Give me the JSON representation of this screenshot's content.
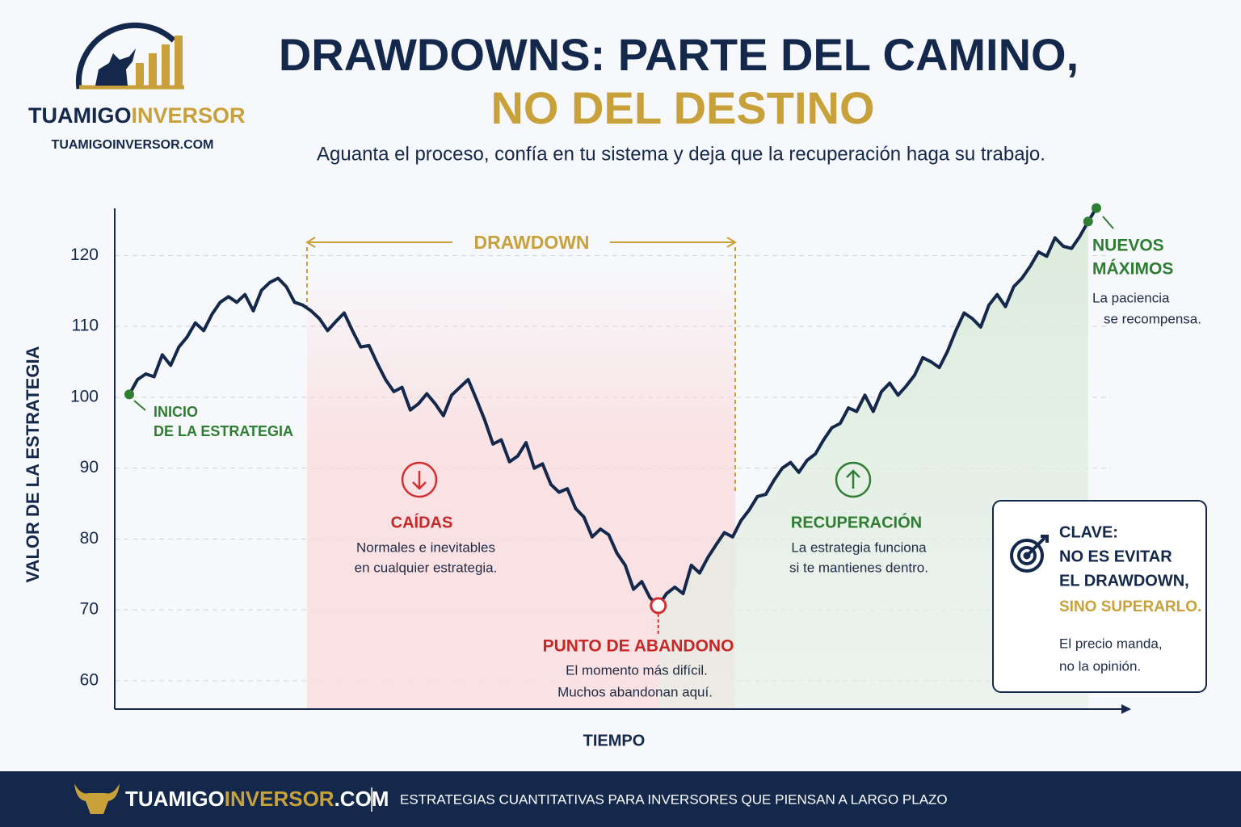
{
  "brand": {
    "name_a": "TUAMIGO",
    "name_b": "INVERSOR",
    "site": "TUAMIGOINVERSOR.COM"
  },
  "header": {
    "title_1": "DRAWDOWNS: PARTE DEL CAMINO,",
    "title_2": "NO DEL DESTINO",
    "subtitle": "Aguanta el proceso, confía en tu sistema y deja que la recuperación haga su trabajo."
  },
  "chart_data": {
    "type": "line",
    "ylabel": "VALOR DE LA ESTRATEGIA",
    "xlabel": "TIEMPO",
    "color": "#14284b",
    "values": [
      100.4,
      102.5,
      103.3,
      102.9,
      106,
      104.5,
      107.1,
      108.5,
      110.5,
      109.4,
      111.7,
      113.4,
      114.2,
      113.4,
      114.5,
      112.2,
      115.1,
      116.2,
      116.8,
      115.6,
      113.4,
      113,
      112.2,
      111.1,
      109.4,
      110.7,
      111.9,
      109.4,
      107.1,
      107.3,
      104.8,
      102.5,
      100.8,
      101.4,
      98.2,
      99.1,
      100.5,
      99.1,
      97.4,
      100.3,
      101.4,
      102.5,
      99.7,
      96.8,
      93.4,
      94,
      90.9,
      91.7,
      93.6,
      90,
      90.6,
      87.7,
      86.6,
      87.1,
      84.3,
      83.1,
      80.3,
      81.4,
      80.6,
      78,
      76.3,
      72.9,
      74,
      71.7,
      70.6,
      72.3,
      73.2,
      72.3,
      76.3,
      75.2,
      77.4,
      79.2,
      80.9,
      80.3,
      82.6,
      84.1,
      86,
      86.3,
      88.3,
      90,
      90.8,
      89.4,
      91.1,
      92,
      94,
      95.7,
      96.3,
      98.5,
      98,
      100.3,
      98,
      100.8,
      102,
      100.3,
      101.6,
      103.1,
      105.6,
      105,
      104.2,
      106.5,
      109.4,
      111.9,
      111.1,
      109.9,
      113,
      114.5,
      112.8,
      115.6,
      116.8,
      118.5,
      120.5,
      119.9,
      122.5,
      121.3,
      121,
      122.7,
      124.8,
      126.7
    ],
    "ylim": [
      56,
      127
    ],
    "yticks": [
      60,
      70,
      80,
      90,
      100,
      110,
      120
    ],
    "grid": true,
    "annotations": {
      "start": [
        "INICIO",
        "DE LA ESTRATEGIA"
      ],
      "drawdown": "DRAWDOWN",
      "falls": {
        "title": "CAÍDAS",
        "lines": [
          "Normales e inevitables",
          "en cualquier estrategia."
        ]
      },
      "abandon": {
        "title": "PUNTO DE ABANDONO",
        "lines": [
          "El momento más difícil.",
          "Muchos abandonan aquí."
        ]
      },
      "recovery": {
        "title": "RECUPERACIÓN",
        "lines": [
          "La estrategia funciona",
          "si te mantienes dentro."
        ]
      },
      "highs": {
        "title": [
          "NUEVOS",
          "MÁXIMOS"
        ],
        "lines": [
          "La paciencia",
          "se recompensa."
        ]
      }
    }
  },
  "key_box": {
    "lines": [
      "CLAVE:",
      "NO ES EVITAR",
      "EL DRAWDOWN,"
    ],
    "highlight": "SINO SUPERARLO.",
    "note": [
      "El precio manda,",
      "no la opinión."
    ]
  },
  "footer": {
    "brand_a": "TUAMIGO",
    "brand_b": "INVERSOR",
    "brand_c": ".COM",
    "tagline": "ESTRATEGIAS CUANTITATIVAS PARA INVERSORES QUE PIENSAN A LARGO PLAZO"
  }
}
